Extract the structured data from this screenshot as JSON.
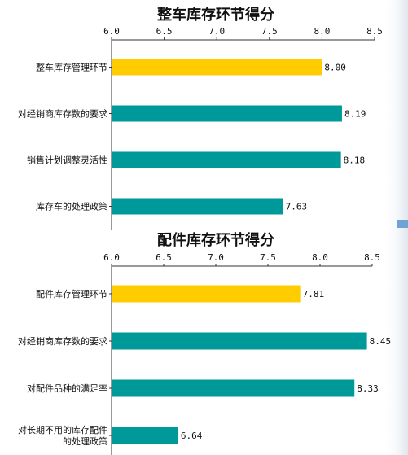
{
  "chart_data": [
    {
      "type": "bar",
      "orientation": "horizontal",
      "title": "整车库存环节得分",
      "xlim": [
        6.0,
        8.5
      ],
      "ticks": [
        "6.0",
        "6.5",
        "7.0",
        "7.5",
        "8.0",
        "8.5"
      ],
      "categories": [
        "整车库存管理环节",
        "对经销商库存数的要求",
        "销售计划调整灵活性",
        "库存车的处理政策"
      ],
      "values": [
        8.0,
        8.19,
        8.18,
        7.63
      ],
      "value_labels": [
        "8.00",
        "8.19",
        "8.18",
        "7.63"
      ],
      "colors": [
        "#FFCC00",
        "#009999",
        "#009999",
        "#009999"
      ],
      "grid": false,
      "legend": "none"
    },
    {
      "type": "bar",
      "orientation": "horizontal",
      "title": "配件库存环节得分",
      "xlim": [
        6.0,
        8.5
      ],
      "ticks": [
        "6.0",
        "6.5",
        "7.0",
        "7.5",
        "8.0",
        "8.5"
      ],
      "categories": [
        "配件库存管理环节",
        "对经销商库存数的要求",
        "对配件品种的满足率",
        "对长期不用的库存配件\n的处理政策"
      ],
      "values": [
        7.81,
        8.45,
        8.33,
        6.64
      ],
      "value_labels": [
        "7.81",
        "8.45",
        "8.33",
        "6.64"
      ],
      "colors": [
        "#FFCC00",
        "#009999",
        "#009999",
        "#009999"
      ],
      "grid": false,
      "legend": "none"
    }
  ]
}
